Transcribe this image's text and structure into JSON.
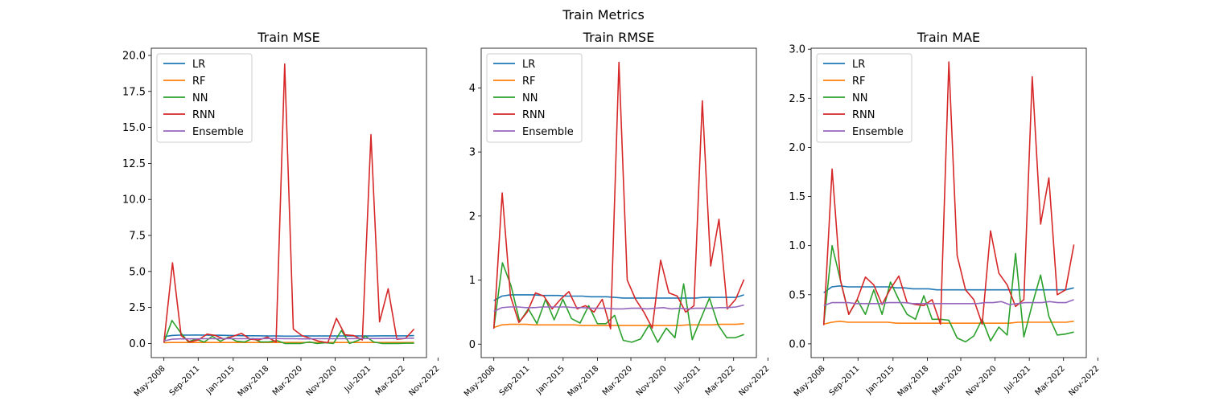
{
  "figure": {
    "title": "Train Metrics"
  },
  "colors": {
    "LR": "#1f77b4",
    "RF": "#ff7f0e",
    "NN": "#2ca02c",
    "RNN": "#d62728",
    "Ensemble": "#9467bd"
  },
  "chart_data": [
    {
      "type": "line",
      "title": "Train MSE",
      "xlabel": "",
      "ylabel": "",
      "x_ticks": [
        "May-2008",
        "Sep-2011",
        "Jan-2015",
        "May-2018",
        "Mar-2020",
        "Nov-2020",
        "Jul-2021",
        "Mar-2022",
        "Nov-2022"
      ],
      "ylim": [
        -0.98,
        20.5
      ],
      "y_ticks": [
        0.0,
        2.5,
        5.0,
        7.5,
        10.0,
        12.5,
        15.0,
        17.5,
        20.0
      ],
      "y_tick_labels": [
        "0.0",
        "2.5",
        "5.0",
        "7.5",
        "10.0",
        "12.5",
        "15.0",
        "17.5",
        "20.0"
      ],
      "grid": false,
      "legend": "upper-left",
      "series": [
        {
          "name": "LR",
          "values": [
            0.47,
            0.56,
            0.58,
            0.58,
            0.59,
            0.58,
            0.57,
            0.57,
            0.56,
            0.55,
            0.54,
            0.54,
            0.53,
            0.52,
            0.52,
            0.51,
            0.51,
            0.52,
            0.52,
            0.52,
            0.52,
            0.52,
            0.52,
            0.52,
            0.52,
            0.52,
            0.52,
            0.53,
            0.53,
            0.53,
            0.53,
            0.55
          ]
        },
        {
          "name": "RF",
          "values": [
            0.06,
            0.07,
            0.07,
            0.07,
            0.07,
            0.07,
            0.07,
            0.07,
            0.07,
            0.07,
            0.07,
            0.07,
            0.07,
            0.07,
            0.07,
            0.07,
            0.07,
            0.07,
            0.07,
            0.07,
            0.07,
            0.07,
            0.07,
            0.07,
            0.07,
            0.07,
            0.07,
            0.07,
            0.07,
            0.07,
            0.07,
            0.07
          ]
        },
        {
          "name": "NN",
          "values": [
            0.06,
            1.6,
            0.8,
            0.12,
            0.3,
            0.1,
            0.5,
            0.15,
            0.45,
            0.15,
            0.1,
            0.35,
            0.1,
            0.1,
            0.2,
            0.0,
            0.0,
            0.0,
            0.1,
            0.0,
            0.05,
            0.0,
            0.9,
            0.0,
            0.2,
            0.5,
            0.1,
            0.0,
            0.0,
            0.0,
            0.02,
            0.02
          ]
        },
        {
          "name": "RNN",
          "values": [
            0.06,
            5.6,
            0.55,
            0.1,
            0.25,
            0.65,
            0.55,
            0.3,
            0.5,
            0.7,
            0.3,
            0.25,
            0.45,
            0.1,
            19.4,
            1.0,
            0.55,
            0.35,
            0.15,
            0.05,
            1.75,
            0.6,
            0.55,
            0.25,
            14.5,
            1.5,
            3.8,
            0.3,
            0.35,
            1.0
          ]
        },
        {
          "name": "Ensemble",
          "values": [
            0.18,
            0.3,
            0.32,
            0.32,
            0.32,
            0.33,
            0.33,
            0.33,
            0.34,
            0.33,
            0.33,
            0.33,
            0.33,
            0.34,
            0.34,
            0.33,
            0.33,
            0.32,
            0.32,
            0.33,
            0.33,
            0.33,
            0.33,
            0.33,
            0.34,
            0.34,
            0.34,
            0.34,
            0.35,
            0.35,
            0.36,
            0.37
          ]
        }
      ]
    },
    {
      "type": "line",
      "title": "Train RMSE",
      "xlabel": "",
      "ylabel": "",
      "x_ticks": [
        "May-2008",
        "Sep-2011",
        "Jan-2015",
        "May-2018",
        "Mar-2020",
        "Nov-2020",
        "Jul-2021",
        "Mar-2022",
        "Nov-2022"
      ],
      "ylim": [
        -0.21,
        4.62
      ],
      "y_ticks": [
        0,
        1,
        2,
        3,
        4
      ],
      "y_tick_labels": [
        "0",
        "1",
        "2",
        "3",
        "4"
      ],
      "grid": false,
      "legend": "upper-left",
      "series": [
        {
          "name": "LR",
          "values": [
            0.68,
            0.75,
            0.77,
            0.77,
            0.77,
            0.77,
            0.76,
            0.76,
            0.76,
            0.75,
            0.75,
            0.75,
            0.74,
            0.74,
            0.74,
            0.73,
            0.72,
            0.72,
            0.72,
            0.72,
            0.72,
            0.72,
            0.72,
            0.72,
            0.72,
            0.72,
            0.73,
            0.73,
            0.73,
            0.73,
            0.73,
            0.77
          ]
        },
        {
          "name": "RF",
          "values": [
            0.26,
            0.3,
            0.31,
            0.31,
            0.31,
            0.3,
            0.3,
            0.3,
            0.3,
            0.3,
            0.3,
            0.29,
            0.29,
            0.29,
            0.29,
            0.29,
            0.29,
            0.29,
            0.29,
            0.29,
            0.29,
            0.29,
            0.29,
            0.29,
            0.3,
            0.3,
            0.3,
            0.3,
            0.31,
            0.31,
            0.31,
            0.32
          ]
        },
        {
          "name": "NN",
          "values": [
            0.25,
            1.27,
            0.91,
            0.35,
            0.55,
            0.32,
            0.7,
            0.38,
            0.7,
            0.4,
            0.33,
            0.6,
            0.32,
            0.32,
            0.45,
            0.06,
            0.03,
            0.08,
            0.3,
            0.03,
            0.25,
            0.1,
            0.94,
            0.07,
            0.4,
            0.72,
            0.3,
            0.1,
            0.1,
            0.15
          ]
        },
        {
          "name": "RNN",
          "values": [
            0.24,
            2.36,
            0.75,
            0.34,
            0.5,
            0.8,
            0.75,
            0.55,
            0.7,
            0.82,
            0.55,
            0.6,
            0.5,
            0.7,
            0.24,
            4.4,
            1.0,
            0.7,
            0.5,
            0.25,
            1.31,
            0.8,
            0.75,
            0.5,
            0.6,
            3.8,
            1.22,
            1.95,
            0.55,
            0.7,
            1.01
          ]
        },
        {
          "name": "Ensemble",
          "values": [
            0.51,
            0.57,
            0.58,
            0.58,
            0.57,
            0.57,
            0.58,
            0.58,
            0.58,
            0.58,
            0.57,
            0.57,
            0.56,
            0.56,
            0.56,
            0.55,
            0.55,
            0.56,
            0.56,
            0.55,
            0.56,
            0.57,
            0.55,
            0.56,
            0.55,
            0.56,
            0.56,
            0.56,
            0.57,
            0.57,
            0.58,
            0.61
          ]
        }
      ]
    },
    {
      "type": "line",
      "title": "Train MAE",
      "xlabel": "",
      "ylabel": "",
      "x_ticks": [
        "May-2008",
        "Sep-2011",
        "Jan-2015",
        "May-2018",
        "Mar-2020",
        "Nov-2020",
        "Jul-2021",
        "Mar-2022",
        "Nov-2022"
      ],
      "ylim": [
        -0.14,
        3.01
      ],
      "y_ticks": [
        0.0,
        0.5,
        1.0,
        1.5,
        2.0,
        2.5,
        3.0
      ],
      "y_tick_labels": [
        "0.0",
        "0.5",
        "1.0",
        "1.5",
        "2.0",
        "2.5",
        "3.0"
      ],
      "grid": false,
      "legend": "upper-left",
      "series": [
        {
          "name": "LR",
          "values": [
            0.52,
            0.58,
            0.59,
            0.58,
            0.58,
            0.58,
            0.58,
            0.58,
            0.58,
            0.57,
            0.57,
            0.56,
            0.56,
            0.56,
            0.55,
            0.55,
            0.55,
            0.55,
            0.55,
            0.55,
            0.55,
            0.55,
            0.55,
            0.55,
            0.55,
            0.55,
            0.55,
            0.55,
            0.55,
            0.55,
            0.55,
            0.57
          ]
        },
        {
          "name": "RF",
          "values": [
            0.2,
            0.22,
            0.23,
            0.22,
            0.22,
            0.22,
            0.22,
            0.22,
            0.22,
            0.21,
            0.21,
            0.21,
            0.21,
            0.21,
            0.21,
            0.21,
            0.21,
            0.21,
            0.21,
            0.21,
            0.21,
            0.21,
            0.21,
            0.21,
            0.22,
            0.22,
            0.22,
            0.22,
            0.22,
            0.22,
            0.22,
            0.23
          ]
        },
        {
          "name": "NN",
          "values": [
            0.2,
            1.0,
            0.65,
            0.3,
            0.45,
            0.3,
            0.55,
            0.3,
            0.63,
            0.45,
            0.3,
            0.25,
            0.49,
            0.25,
            0.25,
            0.24,
            0.06,
            0.02,
            0.08,
            0.25,
            0.03,
            0.17,
            0.09,
            0.92,
            0.07,
            0.4,
            0.7,
            0.28,
            0.09,
            0.1,
            0.12
          ]
        },
        {
          "name": "RNN",
          "values": [
            0.19,
            1.78,
            0.65,
            0.3,
            0.45,
            0.68,
            0.6,
            0.4,
            0.56,
            0.69,
            0.42,
            0.4,
            0.39,
            0.45,
            0.2,
            2.87,
            0.9,
            0.55,
            0.45,
            0.2,
            1.15,
            0.72,
            0.6,
            0.38,
            0.45,
            2.72,
            1.22,
            1.69,
            0.5,
            0.55,
            1.01
          ]
        },
        {
          "name": "Ensemble",
          "values": [
            0.39,
            0.42,
            0.42,
            0.42,
            0.41,
            0.41,
            0.41,
            0.41,
            0.42,
            0.42,
            0.42,
            0.41,
            0.41,
            0.41,
            0.41,
            0.41,
            0.41,
            0.41,
            0.41,
            0.41,
            0.42,
            0.42,
            0.43,
            0.4,
            0.41,
            0.42,
            0.42,
            0.42,
            0.43,
            0.42,
            0.42,
            0.45
          ]
        }
      ]
    }
  ]
}
